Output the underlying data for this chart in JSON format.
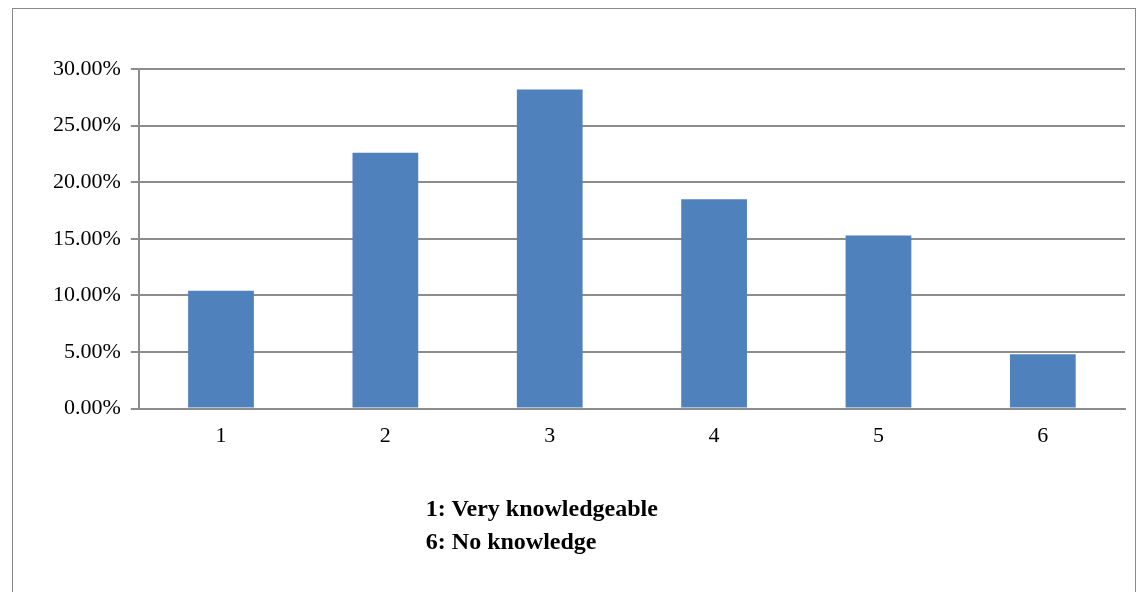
{
  "chart_data": {
    "type": "bar",
    "categories": [
      "1",
      "2",
      "3",
      "4",
      "5",
      "6"
    ],
    "values": [
      10.4,
      22.6,
      28.2,
      18.5,
      15.3,
      4.8
    ],
    "color": "#4f81bd",
    "ylim": [
      0,
      30
    ],
    "yticks": [
      {
        "value": 0,
        "label": "0.00%"
      },
      {
        "value": 5,
        "label": "5.00%"
      },
      {
        "value": 10,
        "label": "10.00%"
      },
      {
        "value": 15,
        "label": "15.00%"
      },
      {
        "value": 20,
        "label": "20.00%"
      },
      {
        "value": 25,
        "label": "25.00%"
      },
      {
        "value": 30,
        "label": "30.00%"
      }
    ],
    "grid": "y",
    "annotations": [
      "1: Very knowledgeable",
      "6: No knowledge"
    ]
  }
}
